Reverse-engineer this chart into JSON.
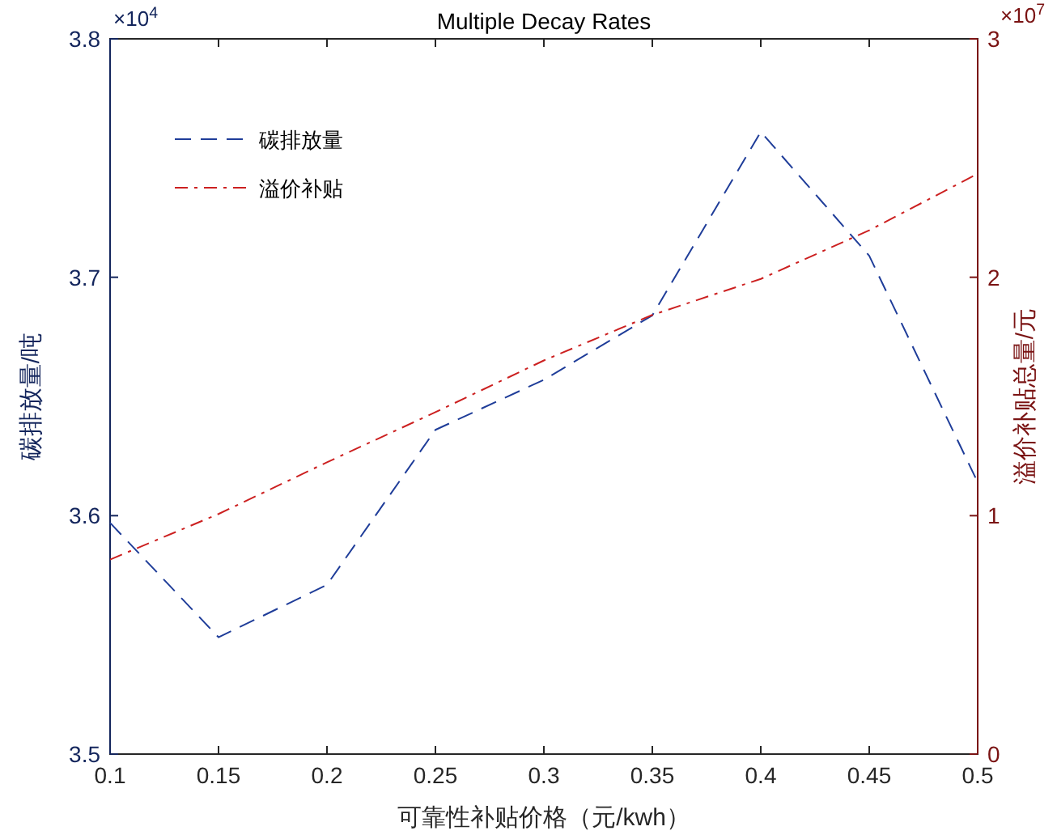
{
  "chart_data": {
    "type": "line",
    "title": "Multiple Decay Rates",
    "xlabel": "可靠性补贴价格（元/kwh）",
    "ylabel": "碳排放量/吨",
    "y2label": "溢价补贴总量/元",
    "x": [
      0.1,
      0.15,
      0.2,
      0.25,
      0.3,
      0.35,
      0.4,
      0.45,
      0.5
    ],
    "series": [
      {
        "name": "碳排放量",
        "color": "#1f3d99",
        "line_style": "dashed",
        "values": [
          3.597,
          3.549,
          3.571,
          3.636,
          3.657,
          3.684,
          3.761,
          3.709,
          3.614
        ]
      },
      {
        "name": "溢价补贴",
        "color": "#cc2020",
        "line_style": "dashdot",
        "axis": "y2",
        "values": [
          0.816,
          1.007,
          1.224,
          1.434,
          1.651,
          1.842,
          1.993,
          2.197,
          2.434
        ]
      }
    ],
    "xlim": [
      0.1,
      0.5
    ],
    "xticks": [
      0.1,
      0.15,
      0.2,
      0.25,
      0.3,
      0.35,
      0.4,
      0.45,
      0.5
    ],
    "ylim": [
      3.5,
      3.8
    ],
    "yticks": [
      3.5,
      3.6,
      3.7,
      3.8
    ],
    "y2lim": [
      0,
      3
    ],
    "y2ticks": [
      0,
      1,
      2,
      3
    ],
    "annotations": [
      "×10$^{4}$",
      "×10$^{7}$"
    ],
    "legend": "top left",
    "grid": false
  }
}
